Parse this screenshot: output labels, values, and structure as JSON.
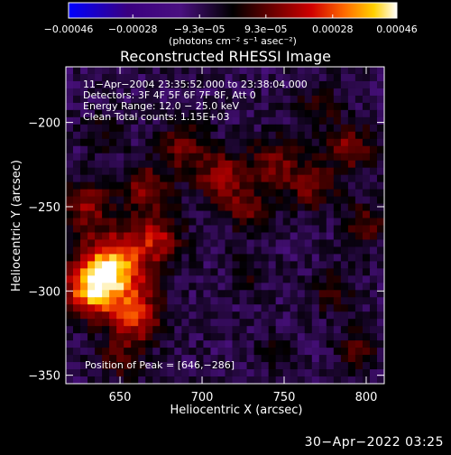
{
  "chart_data": {
    "type": "heatmap",
    "title": "Reconstructed RHESSI Image",
    "xlabel": "Heliocentric X (arcsec)",
    "ylabel": "Heliocentric Y (arcsec)",
    "xlim": [
      617,
      811
    ],
    "ylim": [
      -355,
      -167
    ],
    "xticks": [
      650,
      700,
      750,
      800
    ],
    "yticks": [
      -200,
      -250,
      -300,
      -350
    ],
    "xtick_labels": [
      "650",
      "700",
      "750",
      "800"
    ],
    "ytick_labels": [
      "−200",
      "−250",
      "−300",
      "−350"
    ],
    "colorbar": {
      "range": [
        -0.00046,
        0.00046
      ],
      "tick_values": [
        -0.00046,
        -0.00028,
        -9.3e-05,
        9.3e-05,
        0.00028,
        0.00046
      ],
      "tick_labels": [
        "−0.00046",
        "−0.00028",
        "−9.3e−05",
        "9.3e−05",
        "0.00028",
        "0.00046"
      ],
      "unit_label": "(photons cm⁻² s⁻¹ asec⁻²)"
    },
    "annotations": [
      "11−Apr−2004 23:35:52.000 to 23:38:04.000",
      "Detectors: 3F 4F 5F 6F 7F 8F, Att 0",
      "Energy Range: 12.0 − 25.0 keV",
      "Clean     Total counts: 1.15E+03"
    ],
    "peak_label": "Position of Peak = [646,−286]",
    "peak": [
      646,
      -286
    ],
    "components": [
      {
        "x": 646,
        "y": -286,
        "amp": 0.00046,
        "sigma": 14
      },
      {
        "x": 632,
        "y": -300,
        "amp": 0.00036,
        "sigma": 11
      },
      {
        "x": 660,
        "y": -315,
        "amp": 0.0003,
        "sigma": 11
      },
      {
        "x": 672,
        "y": -268,
        "amp": 0.00024,
        "sigma": 11
      },
      {
        "x": 630,
        "y": -250,
        "amp": 0.00022,
        "sigma": 10
      },
      {
        "x": 665,
        "y": -238,
        "amp": 0.0002,
        "sigma": 10
      },
      {
        "x": 688,
        "y": -215,
        "amp": 0.00018,
        "sigma": 10
      },
      {
        "x": 712,
        "y": -232,
        "amp": 0.00024,
        "sigma": 11
      },
      {
        "x": 728,
        "y": -252,
        "amp": 0.00016,
        "sigma": 9
      },
      {
        "x": 745,
        "y": -225,
        "amp": 0.0002,
        "sigma": 11
      },
      {
        "x": 768,
        "y": -238,
        "amp": 0.00018,
        "sigma": 10
      },
      {
        "x": 790,
        "y": -215,
        "amp": 0.0002,
        "sigma": 10
      },
      {
        "x": 800,
        "y": -260,
        "amp": 0.00016,
        "sigma": 9
      },
      {
        "x": 780,
        "y": -300,
        "amp": 0.00014,
        "sigma": 9
      },
      {
        "x": 795,
        "y": -335,
        "amp": 0.00013,
        "sigma": 9
      },
      {
        "x": 770,
        "y": -190,
        "amp": 0.00011,
        "sigma": 9
      },
      {
        "x": 727,
        "y": -290,
        "amp": 8e-05,
        "sigma": 8
      },
      {
        "x": 745,
        "y": -335,
        "amp": 7e-05,
        "sigma": 8
      },
      {
        "x": 650,
        "y": -340,
        "amp": 0.00014,
        "sigma": 9
      },
      {
        "x": 640,
        "y": -205,
        "amp": 0.0001,
        "sigma": 8
      }
    ]
  },
  "footer_timestamp": "30−Apr−2022 03:25"
}
